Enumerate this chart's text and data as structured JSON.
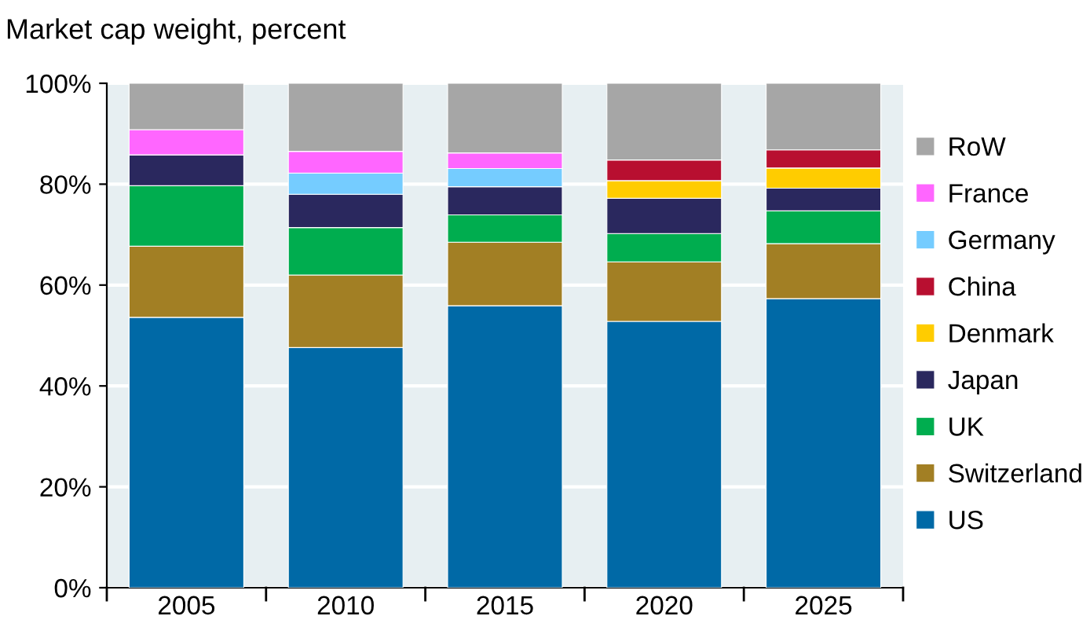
{
  "chart_data": {
    "type": "bar",
    "stacked": true,
    "subtitle": "Market cap weight, percent",
    "categories": [
      "2005",
      "2010",
      "2015",
      "2020",
      "2025"
    ],
    "series": [
      {
        "name": "US",
        "color": "#0069a6",
        "values": [
          53.6,
          47.6,
          55.9,
          52.8,
          57.3
        ]
      },
      {
        "name": "Switzerland",
        "color": "#a27f24",
        "values": [
          14.1,
          14.4,
          12.6,
          11.8,
          10.9
        ]
      },
      {
        "name": "UK",
        "color": "#00ad4f",
        "values": [
          12.0,
          9.4,
          5.4,
          5.6,
          6.5
        ]
      },
      {
        "name": "Japan",
        "color": "#2a285e",
        "values": [
          6.1,
          6.6,
          5.6,
          7.0,
          4.5
        ]
      },
      {
        "name": "Denmark",
        "color": "#ffcc00",
        "values": [
          null,
          null,
          null,
          3.5,
          4.0
        ]
      },
      {
        "name": "China",
        "color": "#b80f30",
        "values": [
          null,
          null,
          null,
          4.1,
          3.6
        ]
      },
      {
        "name": "Germany",
        "color": "#75ccff",
        "values": [
          null,
          4.2,
          3.6,
          null,
          null
        ]
      },
      {
        "name": "France",
        "color": "#ff66ff",
        "values": [
          5.0,
          4.3,
          3.1,
          null,
          null
        ]
      },
      {
        "name": "RoW",
        "color": "#a6a6a6",
        "values": [
          9.2,
          13.5,
          13.8,
          15.2,
          13.2
        ]
      }
    ],
    "ylim": [
      0,
      100
    ],
    "yticks": [
      {
        "value": 0,
        "label": "0%"
      },
      {
        "value": 20,
        "label": "20%"
      },
      {
        "value": 40,
        "label": "40%"
      },
      {
        "value": 60,
        "label": "60%"
      },
      {
        "value": 80,
        "label": "80%"
      },
      {
        "value": 100,
        "label": "100%"
      }
    ],
    "grid": "y",
    "legend": "right"
  }
}
